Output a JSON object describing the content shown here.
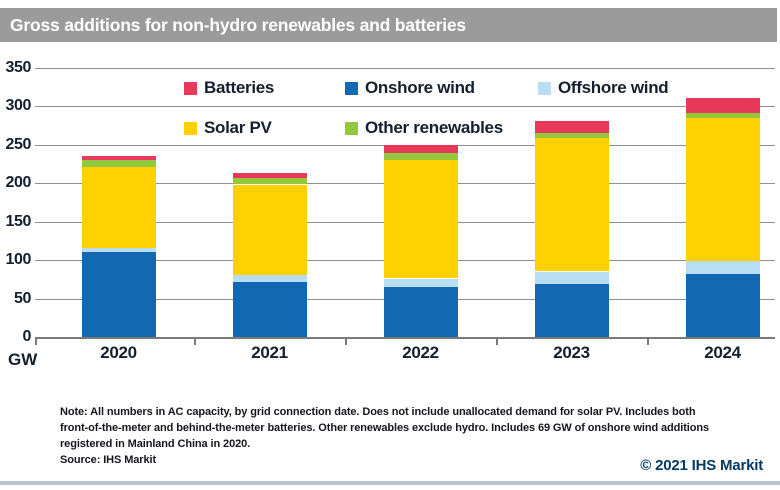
{
  "title": "Gross additions for non-hydro renewables and batteries",
  "chart_data": {
    "type": "bar",
    "stacked": true,
    "title": "Gross additions for non-hydro renewables and batteries",
    "unit": "GW",
    "ylabel": "GW",
    "ylim": [
      0,
      350
    ],
    "ytick_step": 50,
    "grid": true,
    "legend_position": "top-inside",
    "categories": [
      "2020",
      "2021",
      "2022",
      "2023",
      "2024"
    ],
    "series": [
      {
        "name": "Onshore wind",
        "color": "#1268b1",
        "values": [
          110,
          71,
          65,
          69,
          82
        ]
      },
      {
        "name": "Offshore wind",
        "color": "#b9ddf2",
        "values": [
          5,
          10,
          11,
          16,
          17
        ]
      },
      {
        "name": "Solar PV",
        "color": "#ffd100",
        "values": [
          106,
          117,
          154,
          173,
          185
        ]
      },
      {
        "name": "Other renewables",
        "color": "#93c83e",
        "values": [
          9,
          9,
          9,
          7,
          7
        ]
      },
      {
        "name": "Batteries",
        "color": "#e8395a",
        "values": [
          5,
          6,
          11,
          16,
          20
        ]
      }
    ],
    "totals": [
      235,
      213,
      250,
      281,
      311
    ]
  },
  "legend": {
    "items": [
      {
        "label": "Batteries",
        "color": "#e8395a"
      },
      {
        "label": "Onshore wind",
        "color": "#1268b1"
      },
      {
        "label": "Offshore wind",
        "color": "#b9ddf2"
      },
      {
        "label": "Solar PV",
        "color": "#ffd100"
      },
      {
        "label": "Other renewables",
        "color": "#93c83e"
      }
    ]
  },
  "footer": {
    "note_lines": [
      "Note: All numbers in AC capacity, by grid connection date. Does not include unallocated demand for solar PV. Includes both",
      "front-of-the-meter and behind-the-meter batteries. Other renewables exclude hydro. Includes 69 GW of onshore wind additions",
      "registered in Mainland China in 2020."
    ],
    "source": "Source: IHS Markit",
    "copyright": "© 2021 IHS Markit"
  },
  "colors": {
    "title_bar_bg": "#9b9b9b",
    "title_text": "#ffffff",
    "axis_text": "#14202e",
    "gridline": "#8f8f8f",
    "copyright_text": "#043a63",
    "bottom_rule": "#b9c6d0"
  }
}
